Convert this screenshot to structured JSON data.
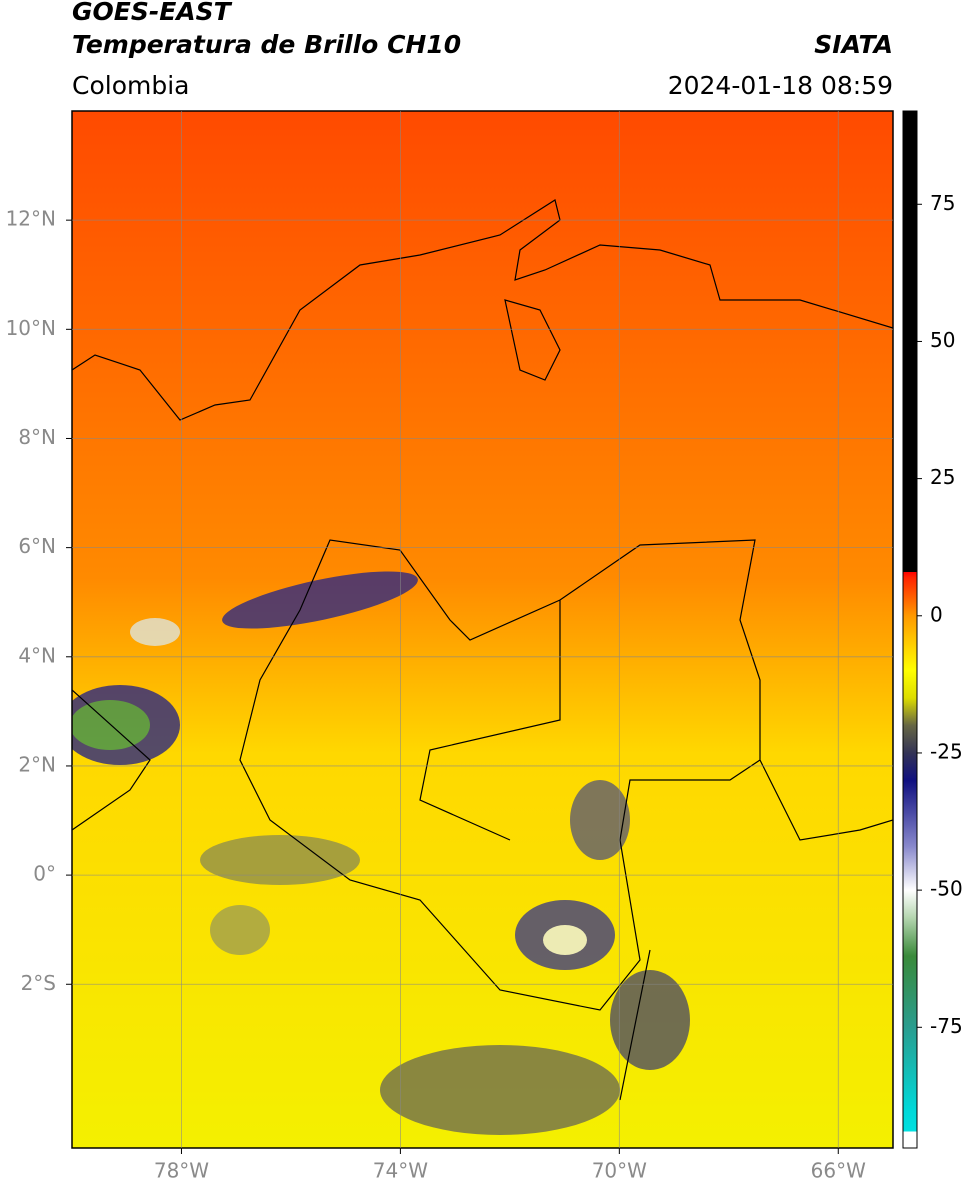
{
  "header": {
    "title": "GOES-EAST",
    "subtitle": "Temperatura de Brillo CH10",
    "source": "SIATA",
    "region": "Colombia",
    "timestamp": "2024-01-18 08:59"
  },
  "map": {
    "lonlim": [
      -80,
      -65
    ],
    "latlim": [
      -5,
      14
    ],
    "lon_ticks": [
      {
        "value": -78,
        "label": "78°W"
      },
      {
        "value": -74,
        "label": "74°W"
      },
      {
        "value": -70,
        "label": "70°W"
      },
      {
        "value": -66,
        "label": "66°W"
      }
    ],
    "lat_ticks": [
      {
        "value": 12,
        "label": "12°N"
      },
      {
        "value": 10,
        "label": "10°N"
      },
      {
        "value": 8,
        "label": "8°N"
      },
      {
        "value": 6,
        "label": "6°N"
      },
      {
        "value": 4,
        "label": "4°N"
      },
      {
        "value": 2,
        "label": "2°N"
      },
      {
        "value": 0,
        "label": "0°"
      },
      {
        "value": -2,
        "label": "2°S"
      }
    ],
    "grid": true
  },
  "colorbar": {
    "clim": [
      -97,
      92
    ],
    "ticks": [
      75,
      50,
      25,
      0,
      -25,
      -50,
      -75
    ],
    "colormap": [
      [
        -97,
        "#ffffff"
      ],
      [
        -94,
        "#ffffff"
      ],
      [
        -94,
        "#00e0e0"
      ],
      [
        -90,
        "#00d8d8"
      ],
      [
        -75,
        "#2a9d8f"
      ],
      [
        -62,
        "#3a8a3a"
      ],
      [
        -55,
        "#b5d6b0"
      ],
      [
        -50,
        "#ffffff"
      ],
      [
        -42,
        "#8888cc"
      ],
      [
        -30,
        "#101080"
      ],
      [
        -25,
        "#333355"
      ],
      [
        -20,
        "#666644"
      ],
      [
        -15,
        "#dddd00"
      ],
      [
        -10,
        "#ffff00"
      ],
      [
        0,
        "#ff9900"
      ],
      [
        7,
        "#ff2200"
      ],
      [
        8,
        "#ff0000"
      ],
      [
        8,
        "#000000"
      ],
      [
        92,
        "#000000"
      ]
    ]
  }
}
